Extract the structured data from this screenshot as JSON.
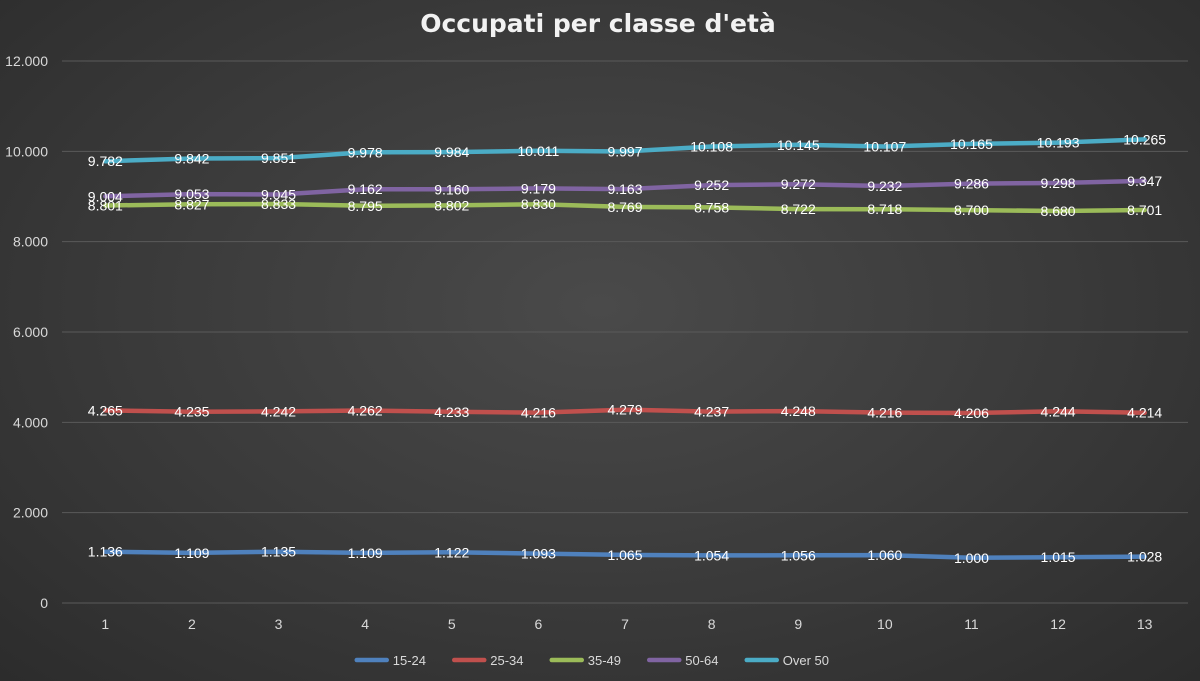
{
  "chart_data": {
    "type": "line",
    "title": "Occupati per classe d'età",
    "xlabel": "",
    "ylabel": "",
    "categories": [
      "1",
      "2",
      "3",
      "4",
      "5",
      "6",
      "7",
      "8",
      "9",
      "10",
      "11",
      "12",
      "13"
    ],
    "ylim": [
      0,
      12000
    ],
    "yticks": [
      0,
      2000,
      4000,
      6000,
      8000,
      10000,
      12000
    ],
    "ytick_labels": [
      "0",
      "2.000",
      "4.000",
      "6.000",
      "8.000",
      "10.000",
      "12.000"
    ],
    "grid": true,
    "legend_position": "bottom",
    "series": [
      {
        "name": "15-24",
        "color": "#4f81bd",
        "values": [
          1136,
          1109,
          1135,
          1109,
          1122,
          1093,
          1065,
          1054,
          1056,
          1060,
          1000,
          1015,
          1028
        ],
        "labels": [
          "1.136",
          "1.109",
          "1.135",
          "1.109",
          "1.122",
          "1.093",
          "1.065",
          "1.054",
          "1.056",
          "1.060",
          "1.000",
          "1.015",
          "1.028"
        ]
      },
      {
        "name": "25-34",
        "color": "#c0504d",
        "values": [
          4265,
          4235,
          4242,
          4262,
          4233,
          4216,
          4279,
          4237,
          4248,
          4216,
          4206,
          4244,
          4214
        ],
        "labels": [
          "4.265",
          "4.235",
          "4.242",
          "4.262",
          "4.233",
          "4.216",
          "4.279",
          "4.237",
          "4.248",
          "4.216",
          "4.206",
          "4.244",
          "4.214"
        ]
      },
      {
        "name": "35-49",
        "color": "#9bbb59",
        "values": [
          8801,
          8827,
          8833,
          8795,
          8802,
          8830,
          8769,
          8758,
          8722,
          8718,
          8700,
          8680,
          8701
        ],
        "labels": [
          "8.801",
          "8.827",
          "8.833",
          "8.795",
          "8.802",
          "8.830",
          "8.769",
          "8.758",
          "8.722",
          "8.718",
          "8.700",
          "8.680",
          "8.701"
        ]
      },
      {
        "name": "50-64",
        "color": "#8064a2",
        "values": [
          9004,
          9053,
          9045,
          9162,
          9160,
          9179,
          9163,
          9252,
          9272,
          9232,
          9286,
          9298,
          9347
        ],
        "labels": [
          "9.004",
          "9.053",
          "9.045",
          "9.162",
          "9.160",
          "9.179",
          "9.163",
          "9.252",
          "9.272",
          "9.232",
          "9.286",
          "9.298",
          "9.347"
        ]
      },
      {
        "name": "Over 50",
        "color": "#4bacc6",
        "values": [
          9782,
          9842,
          9851,
          9978,
          9984,
          10011,
          9997,
          10108,
          10145,
          10107,
          10165,
          10193,
          10265
        ],
        "labels": [
          "9.782",
          "9.842",
          "9.851",
          "9.978",
          "9.984",
          "10.011",
          "9.997",
          "10.108",
          "10.145",
          "10.107",
          "10.165",
          "10.193",
          "10.265"
        ]
      }
    ]
  }
}
